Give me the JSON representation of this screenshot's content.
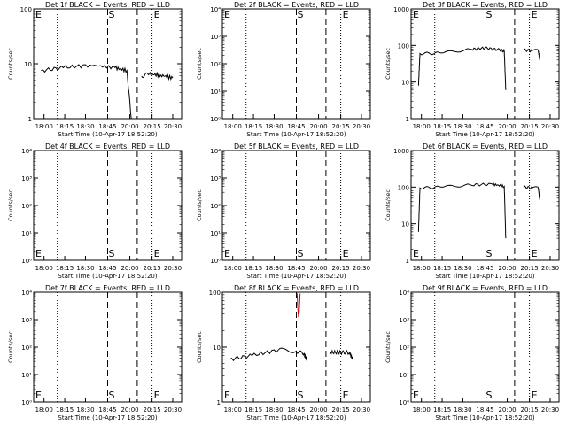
{
  "shared": {
    "x_ticks": [
      "18:00",
      "18:15",
      "18:30",
      "18:45",
      "20:00",
      "20:15",
      "20:30"
    ],
    "xlabel": "Start Time (10-Apr-17 18:52:20)",
    "ylabel": "Counts/sec",
    "marker_s": "S",
    "marker_e": "E",
    "left_e": "E"
  },
  "chart_data": [
    {
      "type": "line",
      "title": "Det 1f BLACK = Events, RED = LLD",
      "ytick_labels": [
        "1",
        "10",
        "100"
      ],
      "ylim": [
        1,
        100
      ],
      "ylog": true,
      "series": [
        {
          "name": "Events",
          "color": "#000000",
          "segments": [
            [
              [
                0.05,
                7.5
              ],
              [
                0.2,
                8.5
              ],
              [
                0.38,
                9.5
              ],
              [
                0.55,
                8.5
              ],
              [
                0.63,
                7.5
              ],
              [
                0.66,
                1.0
              ]
            ],
            [
              [
                0.73,
                6.0
              ],
              [
                0.78,
                6.5
              ],
              [
                0.86,
                6.2
              ],
              [
                0.94,
                5.5
              ]
            ]
          ]
        }
      ]
    },
    {
      "type": "line",
      "title": "Det 2f BLACK = Events, RED = LLD",
      "ytick_labels": [
        "10⁰",
        "10¹",
        "10²",
        "10³",
        "10⁴"
      ],
      "ylim": [
        1,
        10000
      ],
      "ylog": true,
      "series": []
    },
    {
      "type": "line",
      "title": "Det 3f BLACK = Events, RED = LLD",
      "ytick_labels": [
        "1",
        "10",
        "100",
        "1000"
      ],
      "ylim": [
        1,
        1000
      ],
      "ylog": true,
      "series": [
        {
          "name": "Events",
          "color": "#000000",
          "segments": [
            [
              [
                0.05,
                8
              ],
              [
                0.06,
                60
              ],
              [
                0.2,
                62
              ],
              [
                0.4,
                78
              ],
              [
                0.5,
                85
              ],
              [
                0.6,
                76
              ],
              [
                0.63,
                70
              ],
              [
                0.64,
                6
              ]
            ],
            [
              [
                0.76,
                75
              ],
              [
                0.82,
                72
              ],
              [
                0.86,
                72
              ],
              [
                0.87,
                40
              ]
            ]
          ]
        }
      ]
    },
    {
      "type": "line",
      "title": "Det 4f BLACK = Events, RED = LLD",
      "ytick_labels": [
        "10⁰",
        "10¹",
        "10²",
        "10³",
        "10⁴"
      ],
      "ylim": [
        1,
        10000
      ],
      "ylog": true,
      "series": []
    },
    {
      "type": "line",
      "title": "Det 5f BLACK = Events, RED = LLD",
      "ytick_labels": [
        "10⁰",
        "10¹",
        "10²",
        "10³",
        "10⁴"
      ],
      "ylim": [
        1,
        10000
      ],
      "ylog": true,
      "series": []
    },
    {
      "type": "line",
      "title": "Det 6f BLACK = Events, RED = LLD",
      "ytick_labels": [
        "1",
        "10",
        "100",
        "1000"
      ],
      "ylim": [
        1,
        1000
      ],
      "ylog": true,
      "series": [
        {
          "name": "Events",
          "color": "#000000",
          "segments": [
            [
              [
                0.05,
                6
              ],
              [
                0.06,
                95
              ],
              [
                0.2,
                100
              ],
              [
                0.4,
                115
              ],
              [
                0.55,
                120
              ],
              [
                0.63,
                105
              ],
              [
                0.64,
                4
              ]
            ],
            [
              [
                0.76,
                100
              ],
              [
                0.82,
                95
              ],
              [
                0.86,
                95
              ],
              [
                0.87,
                45
              ]
            ]
          ]
        }
      ]
    },
    {
      "type": "line",
      "title": "Det 7f BLACK = Events, RED = LLD",
      "ytick_labels": [
        "10⁰",
        "10¹",
        "10²",
        "10³",
        "10⁴"
      ],
      "ylim": [
        1,
        10000
      ],
      "ylog": true,
      "series": []
    },
    {
      "type": "line",
      "title": "Det 8f BLACK = Events, RED = LLD",
      "ytick_labels": [
        "1",
        "10",
        "100"
      ],
      "ylim": [
        1,
        100
      ],
      "ylog": true,
      "series": [
        {
          "name": "Events",
          "color": "#000000",
          "segments": [
            [
              [
                0.05,
                6
              ],
              [
                0.2,
                7
              ],
              [
                0.38,
                9
              ],
              [
                0.5,
                8.5
              ],
              [
                0.55,
                7.5
              ],
              [
                0.57,
                6
              ]
            ],
            [
              [
                0.73,
                8
              ],
              [
                0.8,
                8
              ],
              [
                0.86,
                8
              ],
              [
                0.88,
                6
              ]
            ]
          ]
        },
        {
          "name": "LLD",
          "color": "#cc0000",
          "segments": [
            [
              [
                0.505,
                95
              ],
              [
                0.51,
                50
              ],
              [
                0.515,
                35
              ],
              [
                0.52,
                48
              ],
              [
                0.525,
                95
              ]
            ]
          ]
        }
      ]
    },
    {
      "type": "line",
      "title": "Det 9f BLACK = Events, RED = LLD",
      "ytick_labels": [
        "10⁰",
        "10¹",
        "10²",
        "10³",
        "10⁴"
      ],
      "ylim": [
        1,
        10000
      ],
      "ylog": true,
      "series": []
    }
  ]
}
